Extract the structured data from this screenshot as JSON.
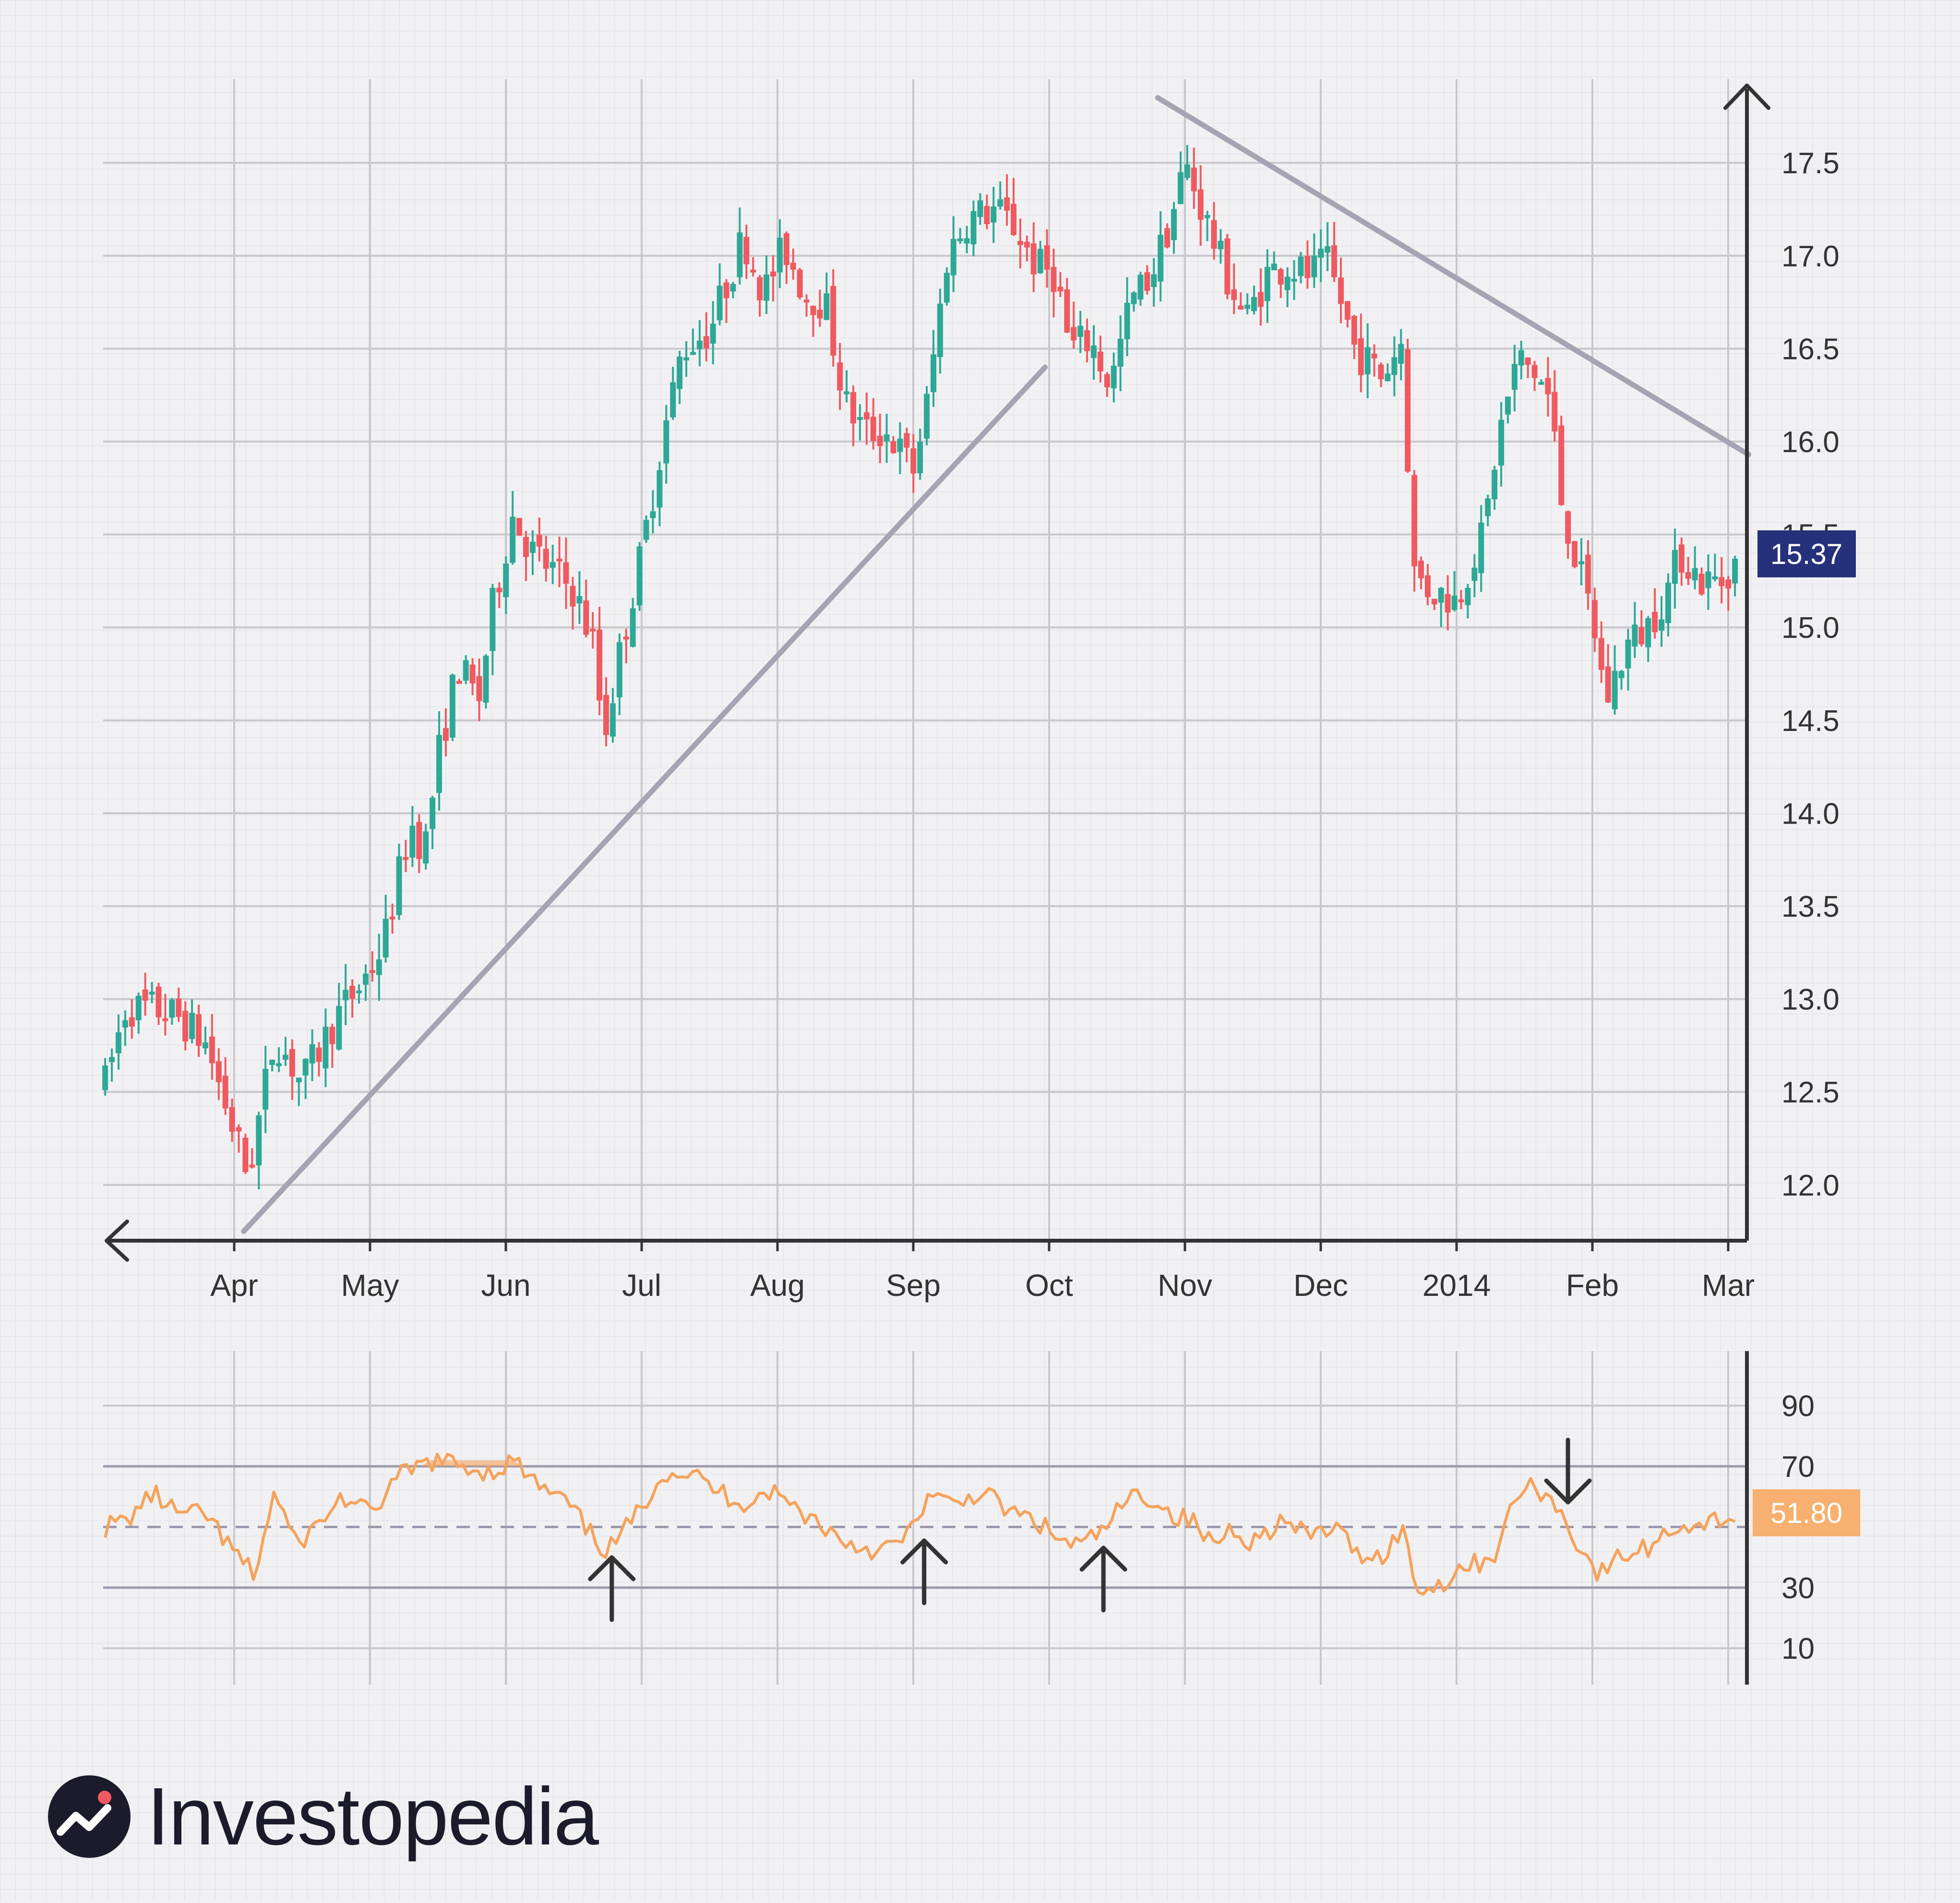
{
  "brand": {
    "name": "Investopedia"
  },
  "colors": {
    "up": "#2ea896",
    "down": "#ee5a5f",
    "rsi": "#f5a35c",
    "trend": "#a6a3b2",
    "price_badge": "#25317a",
    "rsi_badge": "#f7b06f",
    "axis": "#333333",
    "grid": "#c8c8cc"
  },
  "chart_data": [
    {
      "type": "candlestick",
      "x_tick_labels": [
        "Apr",
        "May",
        "Jun",
        "Jul",
        "Aug",
        "Sep",
        "Oct",
        "Nov",
        "Dec",
        "2014",
        "Feb",
        "Mar"
      ],
      "y_ticks": [
        12.0,
        12.5,
        13.0,
        13.5,
        14.0,
        14.5,
        15.0,
        15.5,
        16.0,
        16.5,
        17.0,
        17.5
      ],
      "y_tick_labels": [
        "12.0",
        "12.5",
        "13.0",
        "13.5",
        "14.0",
        "14.5",
        "15.0",
        "15.5",
        "16.0",
        "16.5",
        "17.0",
        "17.5"
      ],
      "ylim": [
        11.7,
        17.95
      ],
      "last_price_label": "15.37",
      "price_path": [
        [
          -0.95,
          12.55
        ],
        [
          -0.8,
          12.95
        ],
        [
          -0.6,
          12.95
        ],
        [
          -0.4,
          12.9
        ],
        [
          -0.2,
          12.75
        ],
        [
          -0.05,
          12.4
        ],
        [
          0.1,
          12.05
        ],
        [
          0.3,
          12.8
        ],
        [
          0.5,
          12.55
        ],
        [
          0.75,
          12.9
        ],
        [
          0.95,
          13.1
        ],
        [
          1.1,
          13.3
        ],
        [
          1.3,
          13.95
        ],
        [
          1.4,
          13.8
        ],
        [
          1.5,
          14.3
        ],
        [
          1.65,
          14.8
        ],
        [
          1.8,
          14.6
        ],
        [
          1.9,
          15.1
        ],
        [
          2.05,
          15.6
        ],
        [
          2.2,
          15.4
        ],
        [
          2.35,
          15.3
        ],
        [
          2.5,
          15.2
        ],
        [
          2.65,
          14.9
        ],
        [
          2.72,
          14.4
        ],
        [
          2.85,
          14.9
        ],
        [
          3.0,
          15.4
        ],
        [
          3.15,
          16.0
        ],
        [
          3.3,
          16.5
        ],
        [
          3.5,
          16.6
        ],
        [
          3.65,
          16.9
        ],
        [
          3.75,
          17.1
        ],
        [
          3.9,
          16.8
        ],
        [
          4.05,
          17.05
        ],
        [
          4.2,
          16.8
        ],
        [
          4.35,
          16.75
        ],
        [
          4.5,
          16.2
        ],
        [
          4.65,
          16.05
        ],
        [
          4.8,
          16.05
        ],
        [
          5.0,
          15.85
        ],
        [
          5.1,
          16.2
        ],
        [
          5.25,
          17.0
        ],
        [
          5.4,
          17.2
        ],
        [
          5.6,
          17.25
        ],
        [
          5.75,
          17.15
        ],
        [
          5.9,
          16.95
        ],
        [
          6.05,
          16.9
        ],
        [
          6.15,
          16.5
        ],
        [
          6.3,
          16.55
        ],
        [
          6.45,
          16.3
        ],
        [
          6.6,
          16.75
        ],
        [
          6.75,
          16.9
        ],
        [
          6.9,
          17.2
        ],
        [
          7.0,
          17.5
        ],
        [
          7.15,
          17.2
        ],
        [
          7.3,
          16.9
        ],
        [
          7.45,
          16.65
        ],
        [
          7.6,
          16.9
        ],
        [
          7.75,
          16.95
        ],
        [
          7.9,
          16.9
        ],
        [
          8.05,
          16.95
        ],
        [
          8.15,
          16.75
        ],
        [
          8.25,
          16.5
        ],
        [
          8.45,
          16.35
        ],
        [
          8.6,
          16.55
        ],
        [
          8.68,
          15.3
        ],
        [
          8.8,
          15.2
        ],
        [
          9.0,
          15.15
        ],
        [
          9.1,
          15.35
        ],
        [
          9.2,
          15.5
        ],
        [
          9.3,
          16.0
        ],
        [
          9.45,
          16.45
        ],
        [
          9.6,
          16.35
        ],
        [
          9.7,
          16.2
        ],
        [
          9.75,
          15.75
        ],
        [
          9.9,
          15.3
        ],
        [
          10.0,
          15.05
        ],
        [
          10.1,
          14.6
        ],
        [
          10.25,
          14.9
        ],
        [
          10.4,
          15.0
        ],
        [
          10.55,
          15.2
        ],
        [
          10.65,
          15.4
        ],
        [
          10.8,
          15.25
        ],
        [
          10.95,
          15.25
        ],
        [
          11.05,
          15.37
        ]
      ]
    },
    {
      "type": "line",
      "name": "RSI",
      "y_ticks": [
        10,
        30,
        70,
        90
      ],
      "y_tick_labels": [
        "10",
        "30",
        "70",
        "90"
      ],
      "ylim": [
        -2,
        108
      ],
      "reference_lines": [
        30,
        50,
        70
      ],
      "last_value_label": "51.80",
      "x": [
        -0.95,
        -0.8,
        -0.6,
        -0.4,
        -0.2,
        -0.05,
        0.15,
        0.3,
        0.45,
        0.6,
        0.8,
        1.0,
        1.2,
        1.45,
        1.7,
        1.9,
        2.05,
        2.25,
        2.45,
        2.65,
        2.75,
        2.95,
        3.15,
        3.35,
        3.55,
        3.75,
        3.95,
        4.15,
        4.35,
        4.5,
        4.75,
        4.95,
        5.1,
        5.3,
        5.5,
        5.7,
        5.9,
        6.1,
        6.25,
        6.4,
        6.6,
        6.75,
        6.9,
        7.05,
        7.2,
        7.35,
        7.5,
        7.7,
        7.9,
        8.1,
        8.25,
        8.45,
        8.6,
        8.7,
        8.85,
        9.0,
        9.15,
        9.3,
        9.45,
        9.6,
        9.75,
        9.9,
        10.05,
        10.2,
        10.4,
        10.6,
        10.8,
        11.0,
        11.05
      ],
      "values": [
        50,
        52,
        61,
        54,
        54,
        44,
        34,
        62,
        44,
        50,
        60,
        54,
        66,
        72,
        70,
        68,
        72,
        63,
        58,
        46,
        42,
        53,
        68,
        68,
        62,
        58,
        62,
        56,
        50,
        45,
        42,
        46,
        60,
        57,
        62,
        55,
        52,
        45,
        44,
        49,
        60,
        60,
        54,
        52,
        44,
        50,
        45,
        52,
        47,
        50,
        42,
        40,
        50,
        30,
        30,
        36,
        38,
        42,
        62,
        63,
        56,
        44,
        34,
        40,
        43,
        50,
        51,
        53,
        52
      ]
    }
  ],
  "annotations": {
    "rsi_arrows": [
      "up",
      "up",
      "up",
      "down"
    ]
  }
}
